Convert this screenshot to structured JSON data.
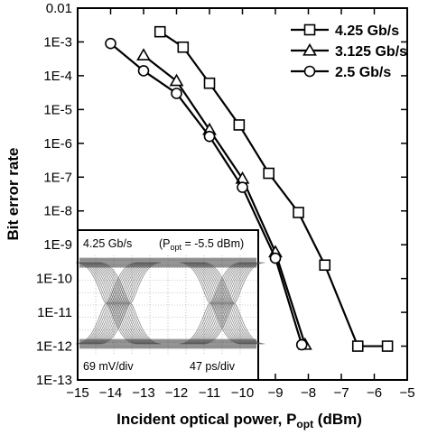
{
  "chart_data": {
    "type": "line",
    "xlabel": "Incident optical power, P",
    "xlabel_sub": "opt",
    "xlabel_unit": " (dBm)",
    "ylabel": "Bit error rate",
    "xlim": [
      -15,
      -5
    ],
    "ylim": [
      1e-13,
      0.01
    ],
    "y_scale": "log",
    "grid": false,
    "legend_position": "top-right",
    "x_ticks": [
      -15,
      -14,
      -13,
      -12,
      -11,
      -10,
      -9,
      -8,
      -7,
      -6,
      -5
    ],
    "x_tick_labels": [
      "−15",
      "−14",
      "−13",
      "−12",
      "−11",
      "−10",
      "−9",
      "−8",
      "−7",
      "−6",
      "−5"
    ],
    "y_ticks": [
      0.01,
      0.001,
      0.0001,
      1e-05,
      1e-06,
      1e-07,
      1e-08,
      1e-09,
      1e-10,
      1e-11,
      1e-12,
      1e-13
    ],
    "y_tick_labels": [
      "0.01",
      "1E-3",
      "1E-4",
      "1E-5",
      "1E-6",
      "1E-7",
      "1E-8",
      "1E-9",
      "1E-10",
      "1E-11",
      "1E-12",
      "1E-13"
    ],
    "series": [
      {
        "name": "4.25 Gb/s",
        "marker": "square",
        "x": [
          -12.5,
          -11.8,
          -11.0,
          -10.1,
          -9.2,
          -8.3,
          -7.5,
          -6.5,
          -5.6
        ],
        "y": [
          0.002,
          0.0007,
          6e-05,
          3.5e-06,
          1.3e-07,
          9e-09,
          2.5e-10,
          1e-12,
          1e-12
        ]
      },
      {
        "name": "3.125 Gb/s",
        "marker": "triangle",
        "x": [
          -13.0,
          -12.0,
          -11.0,
          -10.0,
          -9.0,
          -8.1
        ],
        "y": [
          0.0004,
          7e-05,
          2.5e-06,
          9e-08,
          6e-10,
          1.1e-12
        ]
      },
      {
        "name": "2.5 Gb/s",
        "marker": "circle",
        "x": [
          -14.0,
          -13.0,
          -12.0,
          -11.0,
          -10.0,
          -9.0,
          -8.2
        ],
        "y": [
          0.0009,
          0.00014,
          3e-05,
          1.6e-06,
          5e-08,
          4e-10,
          1.1e-12
        ]
      }
    ],
    "inset": {
      "rate_label": "4.25 Gb/s",
      "popt_prefix": "(P",
      "popt_sub": "opt",
      "popt_value": " = -5.5 dBm)",
      "voltage_scale": "69 mV/div",
      "time_scale": "47 ps/div"
    }
  }
}
